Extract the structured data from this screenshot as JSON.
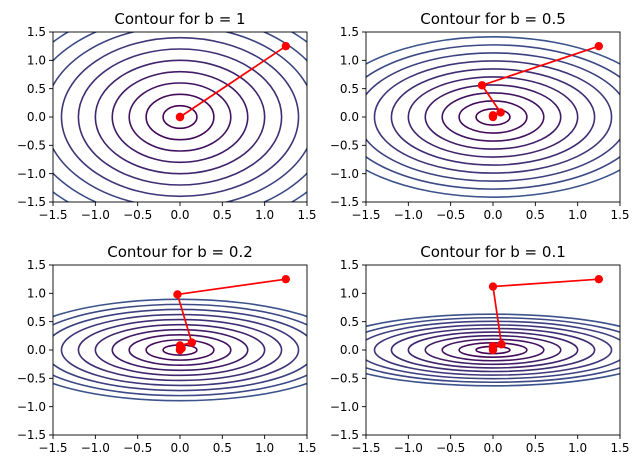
{
  "chart_data": [
    {
      "type": "line",
      "title": "Contour for b = 1",
      "b": 1,
      "xlabel": "",
      "ylabel": "",
      "xlim": [
        -1.5,
        1.5
      ],
      "ylim": [
        -1.5,
        1.5
      ],
      "xticks": [
        "−1.5",
        "−1.0",
        "−0.5",
        "0.0",
        "0.5",
        "1.0",
        "1.5"
      ],
      "yticks": [
        "−1.5",
        "−1.0",
        "−0.5",
        "0.0",
        "0.5",
        "1.0",
        "1.5"
      ],
      "grid": false,
      "contour_levels": [
        0.2,
        0.4,
        0.6,
        0.8,
        1.0,
        1.2,
        1.4,
        1.6,
        1.8,
        2.0
      ],
      "path": {
        "x": [
          1.25,
          0.0,
          0.0
        ],
        "y": [
          1.25,
          0.0,
          0.0
        ]
      }
    },
    {
      "type": "line",
      "title": "Contour for b = 0.5",
      "b": 0.5,
      "xlabel": "",
      "ylabel": "",
      "xlim": [
        -1.5,
        1.5
      ],
      "ylim": [
        -1.5,
        1.5
      ],
      "xticks": [
        "−1.5",
        "−1.0",
        "−0.5",
        "0.0",
        "0.5",
        "1.0",
        "1.5"
      ],
      "yticks": [
        "−1.5",
        "−1.0",
        "−0.5",
        "0.0",
        "0.5",
        "1.0",
        "1.5"
      ],
      "grid": false,
      "contour_levels": [
        0.2,
        0.4,
        0.6,
        0.8,
        1.0,
        1.2,
        1.4,
        1.6,
        1.8,
        2.0
      ],
      "path": {
        "x": [
          1.25,
          -0.13,
          0.09,
          0.0,
          0.0,
          0.0
        ],
        "y": [
          1.25,
          0.56,
          0.08,
          0.03,
          0.01,
          0.0
        ]
      }
    },
    {
      "type": "line",
      "title": "Contour for b = 0.2",
      "b": 0.2,
      "xlabel": "",
      "ylabel": "",
      "xlim": [
        -1.5,
        1.5
      ],
      "ylim": [
        -1.5,
        1.5
      ],
      "xticks": [
        "−1.5",
        "−1.0",
        "−0.5",
        "0.0",
        "0.5",
        "1.0",
        "1.5"
      ],
      "yticks": [
        "−1.5",
        "−1.0",
        "−0.5",
        "0.0",
        "0.5",
        "1.0",
        "1.5"
      ],
      "grid": false,
      "contour_levels": [
        0.2,
        0.4,
        0.6,
        0.8,
        1.0,
        1.2,
        1.4,
        1.6,
        1.8,
        2.0
      ],
      "path": {
        "x": [
          1.25,
          -0.03,
          0.14,
          0.0,
          0.02,
          0.0,
          0.0
        ],
        "y": [
          1.25,
          0.98,
          0.13,
          0.08,
          0.03,
          0.01,
          0.0
        ]
      }
    },
    {
      "type": "line",
      "title": "Contour for b = 0.1",
      "b": 0.1,
      "xlabel": "",
      "ylabel": "",
      "xlim": [
        -1.5,
        1.5
      ],
      "ylim": [
        -1.5,
        1.5
      ],
      "xticks": [
        "−1.5",
        "−1.0",
        "−0.5",
        "0.0",
        "0.5",
        "1.0",
        "1.5"
      ],
      "yticks": [
        "−1.5",
        "−1.0",
        "−0.5",
        "0.0",
        "0.5",
        "1.0",
        "1.5"
      ],
      "grid": false,
      "contour_levels": [
        0.2,
        0.4,
        0.6,
        0.8,
        1.0,
        1.2,
        1.4,
        1.6,
        1.8,
        2.0
      ],
      "path": {
        "x": [
          1.25,
          0.0,
          0.1,
          0.0,
          0.0,
          0.0
        ],
        "y": [
          1.25,
          1.12,
          0.1,
          0.07,
          0.02,
          0.0
        ]
      }
    }
  ],
  "colors": {
    "path": "#ff0000",
    "contour_low": "#440154",
    "contour_high": "#3b528b",
    "axes": "#000000"
  }
}
